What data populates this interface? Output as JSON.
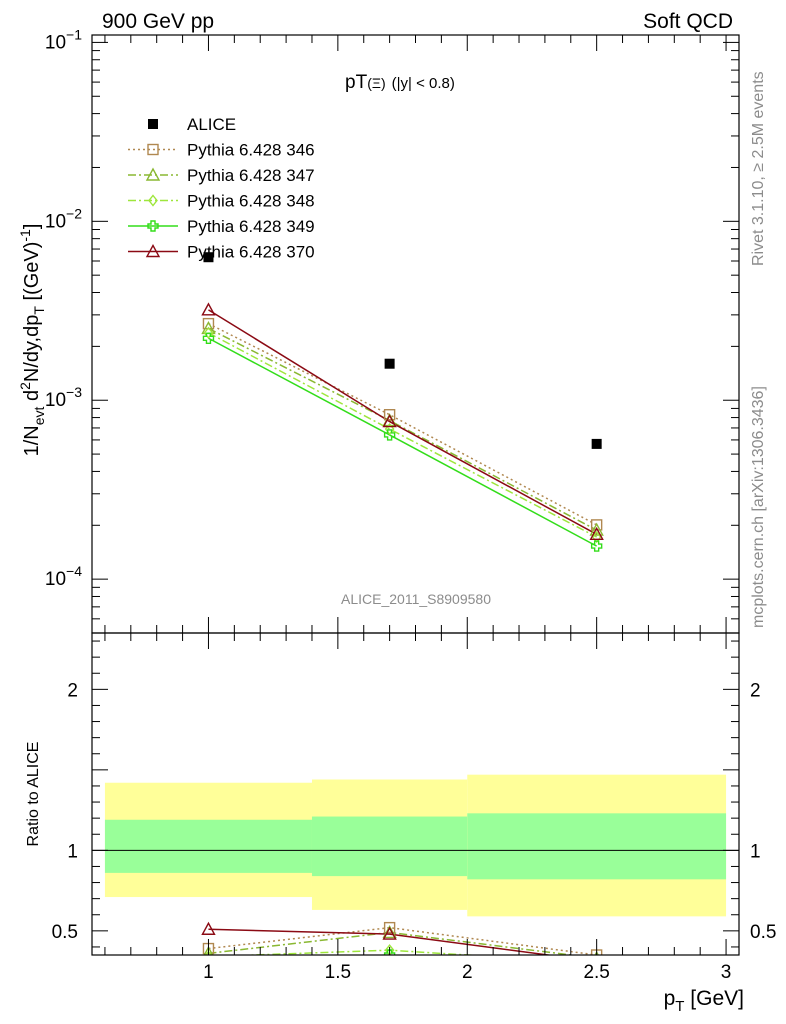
{
  "header": {
    "left": "900 GeV pp",
    "right": "Soft QCD"
  },
  "side_labels": {
    "top": "Rivet 3.1.10, ≥ 2.5M events",
    "bottom": "mcplots.cern.ch [arXiv:1306.3436]"
  },
  "chart_data": [
    {
      "type": "scatter",
      "panel": "main",
      "title_main": "pT",
      "title_sub": "(Ξ)",
      "title_cut": "(|y| < 0.8)",
      "watermark": "ALICE_2011_S8909580",
      "ylabel": "1/N_evt d²N/dy,dp_T [(GeV)⁻¹]",
      "y_scale": "log",
      "xlim": [
        0.55,
        3.05
      ],
      "ylim": [
        5e-05,
        0.11
      ],
      "y_ticks": [
        "10^-4",
        "10^-3",
        "10^-2",
        "10^-1"
      ],
      "legend_position": "top-left",
      "series": [
        {
          "name": "ALICE",
          "color": "#000000",
          "marker": "square-filled",
          "line": "none",
          "x": [
            1.0,
            1.7,
            2.5
          ],
          "y": [
            0.0063,
            0.0016,
            0.00057
          ]
        },
        {
          "name": "Pythia 6.428 346",
          "color": "#b08850",
          "marker": "square-open",
          "line": "dotted",
          "x": [
            1.0,
            1.7,
            2.5
          ],
          "y": [
            0.00268,
            0.00083,
            0.000201
          ]
        },
        {
          "name": "Pythia 6.428 347",
          "color": "#8ab832",
          "marker": "triangle-open",
          "line": "dashdot",
          "x": [
            1.0,
            1.7,
            2.5
          ],
          "y": [
            0.00252,
            0.00077,
            0.000188
          ]
        },
        {
          "name": "Pythia 6.428 348",
          "color": "#9ee63c",
          "marker": "diamond-open",
          "line": "dashdot",
          "x": [
            1.0,
            1.7,
            2.5
          ],
          "y": [
            0.00238,
            0.00069,
            0.000172
          ]
        },
        {
          "name": "Pythia 6.428 349",
          "color": "#33dd1a",
          "marker": "cross-open",
          "line": "solid",
          "x": [
            1.0,
            1.7,
            2.5
          ],
          "y": [
            0.00222,
            0.00064,
            0.000153
          ]
        },
        {
          "name": "Pythia 6.428 370",
          "color": "#8b0a14",
          "marker": "triangle-open",
          "line": "solid",
          "x": [
            1.0,
            1.7,
            2.5
          ],
          "y": [
            0.0032,
            0.00076,
            0.000178
          ]
        }
      ]
    },
    {
      "type": "line",
      "panel": "ratio",
      "ylabel": "Ratio to ALICE",
      "xlabel": "p_T [GeV]",
      "xlim": [
        0.55,
        3.05
      ],
      "ylim": [
        0.35,
        2.35
      ],
      "x_tick_labels": [
        "1",
        "1.5",
        "2",
        "2.5",
        "3"
      ],
      "y_tick_labels": [
        "0.5",
        "1",
        "2"
      ],
      "reference_line": 1,
      "bands": [
        {
          "x_range": [
            0.6,
            1.4
          ],
          "yellow": [
            0.71,
            1.42
          ],
          "green": [
            0.86,
            1.19
          ]
        },
        {
          "x_range": [
            1.4,
            2.0
          ],
          "yellow": [
            0.63,
            1.44
          ],
          "green": [
            0.84,
            1.21
          ]
        },
        {
          "x_range": [
            2.0,
            3.0
          ],
          "yellow": [
            0.59,
            1.47
          ],
          "green": [
            0.82,
            1.23
          ]
        }
      ],
      "series": [
        {
          "name": "Pythia 6.428 346",
          "color": "#b08850",
          "marker": "square-open",
          "line": "dotted",
          "x": [
            1.0,
            1.7,
            2.5
          ],
          "y": [
            0.39,
            0.52,
            0.35
          ]
        },
        {
          "name": "Pythia 6.428 347",
          "color": "#8ab832",
          "marker": "triangle-open",
          "line": "dashdot",
          "x": [
            1.0,
            1.7,
            2.5
          ],
          "y": [
            0.36,
            0.49,
            0.33
          ]
        },
        {
          "name": "Pythia 6.428 348",
          "color": "#9ee63c",
          "marker": "diamond-open",
          "line": "dashdot",
          "x": [
            1.0,
            1.7,
            2.5
          ],
          "y": [
            0.34,
            0.38,
            0.3
          ]
        },
        {
          "name": "Pythia 6.428 349",
          "color": "#33dd1a",
          "marker": "cross-open",
          "line": "solid",
          "x": [
            1.0,
            1.7,
            2.5
          ],
          "y": [
            0.31,
            0.35,
            0.27
          ]
        },
        {
          "name": "Pythia 6.428 370",
          "color": "#8b0a14",
          "marker": "triangle-open",
          "line": "solid",
          "x": [
            1.0,
            1.7,
            2.5
          ],
          "y": [
            0.51,
            0.48,
            0.31
          ]
        }
      ]
    }
  ]
}
